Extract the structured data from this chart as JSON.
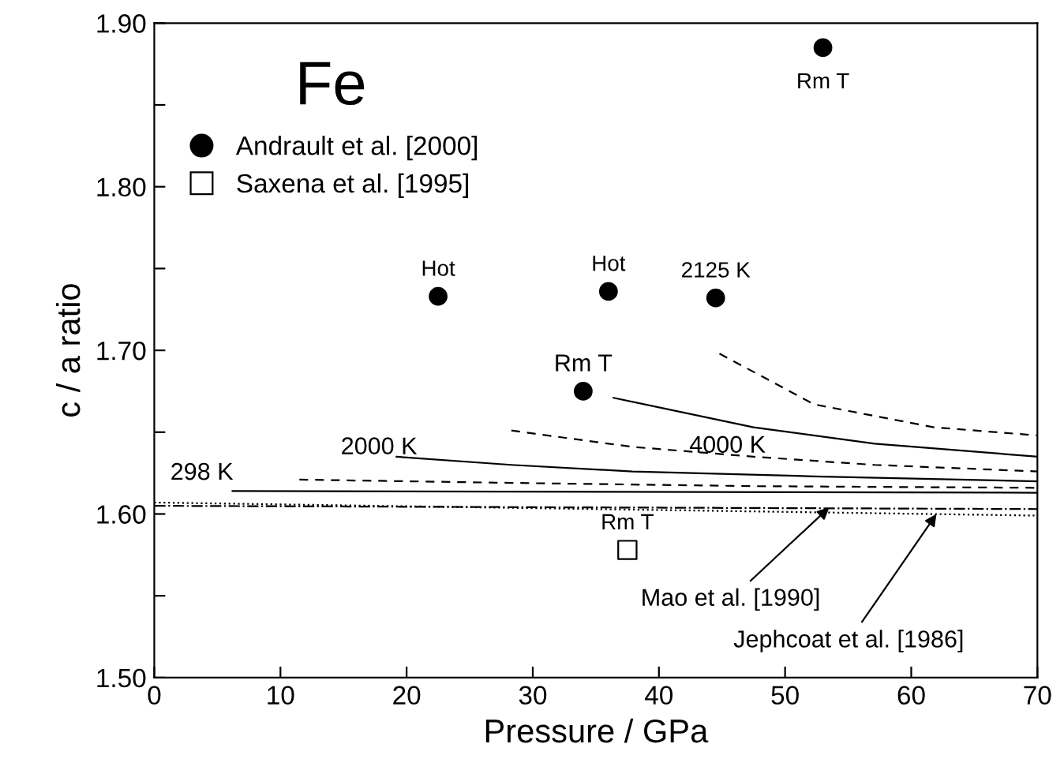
{
  "chart_data": {
    "type": "scatter",
    "xlabel": "Pressure / GPa",
    "ylabel": "c / a ratio",
    "xlim": [
      0,
      70
    ],
    "ylim": [
      1.5,
      1.9
    ],
    "xticks": [
      0,
      10,
      20,
      30,
      40,
      50,
      60,
      70
    ],
    "yticks": [
      {
        "value": 1.5,
        "label": "1.50"
      },
      {
        "value": 1.55,
        "label": null
      },
      {
        "value": 1.6,
        "label": "1.60"
      },
      {
        "value": 1.65,
        "label": null
      },
      {
        "value": 1.7,
        "label": "1.70"
      },
      {
        "value": 1.75,
        "label": null
      },
      {
        "value": 1.8,
        "label": "1.80"
      },
      {
        "value": 1.85,
        "label": null
      },
      {
        "value": 1.9,
        "label": "1.90"
      }
    ],
    "grid": false,
    "legend": "top left",
    "series": [
      {
        "name": "Andrault et al. [2000]",
        "marker": "circle",
        "color": "#000000",
        "x": [
          22.5,
          36,
          44.5,
          34,
          53
        ],
        "values": [
          1.733,
          1.736,
          1.732,
          1.675,
          1.885
        ]
      },
      {
        "name": "Saxena et al. [1995]",
        "marker": "square",
        "color": "#000000",
        "x": [
          37.5
        ],
        "values": [
          1.578
        ]
      },
      {
        "type": "line",
        "line_style": "dashed",
        "color": "#000000",
        "x": [
          44.8,
          52.3,
          61.8,
          70
        ],
        "values": [
          1.698,
          1.667,
          1.653,
          1.648
        ]
      },
      {
        "type": "line",
        "line_style": "solid",
        "color": "#000000",
        "x": [
          36.4,
          47.5,
          57.1,
          70
        ],
        "values": [
          1.671,
          1.653,
          1.643,
          1.635
        ]
      },
      {
        "type": "line",
        "line_style": "dashed",
        "color": "#000000",
        "x": [
          28.3,
          37.9,
          47.5,
          57.1,
          70
        ],
        "values": [
          1.651,
          1.641,
          1.635,
          1.63,
          1.626
        ]
      },
      {
        "type": "line",
        "line_style": "solid",
        "color": "#000000",
        "x": [
          19.2,
          28.3,
          37.9,
          52.3,
          70
        ],
        "values": [
          1.635,
          1.63,
          1.626,
          1.623,
          1.62
        ]
      },
      {
        "type": "line",
        "line_style": "dashed",
        "color": "#000000",
        "x": [
          11.5,
          28.3,
          47.5,
          70
        ],
        "values": [
          1.621,
          1.619,
          1.617,
          1.616
        ]
      },
      {
        "type": "line",
        "line_style": "solid",
        "color": "#000000",
        "x": [
          6.2,
          70
        ],
        "values": [
          1.614,
          1.613
        ]
      },
      {
        "type": "line",
        "line_style": "dashdot",
        "color": "#000000",
        "x": [
          0,
          35,
          70
        ],
        "values": [
          1.605,
          1.604,
          1.603
        ]
      },
      {
        "type": "line",
        "line_style": "dotted",
        "color": "#000000",
        "x": [
          0,
          35,
          70
        ],
        "values": [
          1.607,
          1.603,
          1.599
        ]
      }
    ],
    "annotations": [
      "Fe",
      {
        "text": "Hot",
        "x": 22.5,
        "y": 1.733
      },
      {
        "text": "Hot",
        "x": 36,
        "y": 1.736
      },
      {
        "text": "2125 K",
        "x": 44.5,
        "y": 1.732
      },
      {
        "text": "Rm T",
        "x": 34,
        "y": 1.675
      },
      {
        "text": "Rm T",
        "x": 53,
        "y": 1.885
      },
      {
        "text": "Rm T",
        "x": 37.5,
        "y": 1.578
      },
      {
        "text": "298 K",
        "x": 6.2,
        "y": 1.614
      },
      {
        "text": "2000 K",
        "x": 19.2,
        "y": 1.635
      },
      {
        "text": "4000 K",
        "x": 43,
        "y": 1.66
      },
      {
        "text": "Mao et al. [1990]",
        "x": 53.5,
        "y": 1.604
      },
      {
        "text": "Jephcoat et al. [1986]",
        "x": 62,
        "y": 1.6
      }
    ]
  }
}
